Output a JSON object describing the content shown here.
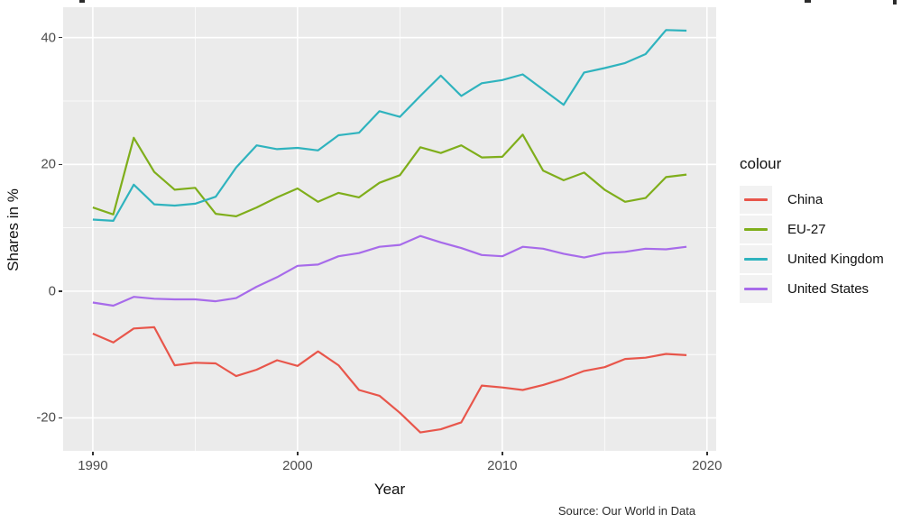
{
  "figure": {
    "source_note": "Source: Our World in Data"
  },
  "colors": {
    "panel_bg": "#EBEBEB",
    "grid": "#FFFFFF",
    "tick_text": "#4D4D4D",
    "axis_title_text": "#111111",
    "legend_key_bg": "#F2F2F2",
    "china": "#E8564B",
    "eu27": "#7FAE1B",
    "united_kingdom": "#2FB3BE",
    "united_states": "#A76BEA"
  },
  "chart_data": {
    "type": "line",
    "xlabel": "Year",
    "ylabel": "Shares in %",
    "legend_title": "colour",
    "legend_position": "right",
    "grid": true,
    "xlim": [
      1988.55,
      2020.45
    ],
    "ylim": [
      -25.2,
      44.8
    ],
    "x_ticks": [
      1990,
      2000,
      2010,
      2020
    ],
    "x_minor_ticks": [
      1995,
      2005,
      2015
    ],
    "y_ticks": [
      40,
      20,
      0,
      -20
    ],
    "y_minor_ticks": [
      30,
      10,
      -10
    ],
    "x": [
      1990,
      1991,
      1992,
      1993,
      1994,
      1995,
      1996,
      1997,
      1998,
      1999,
      2000,
      2001,
      2002,
      2003,
      2004,
      2005,
      2006,
      2007,
      2008,
      2009,
      2010,
      2011,
      2012,
      2013,
      2014,
      2015,
      2016,
      2017,
      2018,
      2019
    ],
    "series": [
      {
        "name": "China",
        "color": "#E8564B",
        "values": [
          -6.7,
          -8.1,
          -5.9,
          -5.7,
          -11.7,
          -11.3,
          -11.4,
          -13.4,
          -12.4,
          -10.9,
          -11.8,
          -9.5,
          -11.7,
          -15.6,
          -16.5,
          -19.2,
          -22.3,
          -21.8,
          -20.7,
          -14.9,
          -15.2,
          -15.6,
          -14.8,
          -13.8,
          -12.6,
          -12.0,
          -10.7,
          -10.5,
          -9.9,
          -10.1
        ]
      },
      {
        "name": "EU-27",
        "color": "#7FAE1B",
        "values": [
          13.2,
          12.1,
          24.2,
          18.8,
          16.0,
          16.3,
          12.2,
          11.8,
          13.2,
          14.8,
          16.2,
          14.1,
          15.5,
          14.8,
          17.1,
          18.3,
          22.7,
          21.8,
          23.0,
          21.1,
          21.2,
          24.7,
          19.0,
          17.5,
          18.7,
          16.0,
          14.1,
          14.7,
          18.0,
          18.4
        ]
      },
      {
        "name": "United Kingdom",
        "color": "#2FB3BE",
        "values": [
          11.3,
          11.1,
          16.8,
          13.7,
          13.5,
          13.8,
          14.9,
          19.5,
          23.0,
          22.4,
          22.6,
          22.2,
          24.6,
          25.0,
          28.4,
          27.5,
          30.8,
          34.0,
          30.8,
          32.8,
          33.3,
          34.2,
          31.8,
          29.4,
          34.5,
          35.2,
          36.0,
          37.4,
          41.2,
          41.1
        ]
      },
      {
        "name": "United States",
        "color": "#A76BEA",
        "values": [
          -1.8,
          -2.3,
          -0.9,
          -1.2,
          -1.3,
          -1.3,
          -1.6,
          -1.1,
          0.7,
          2.2,
          4.0,
          4.2,
          5.5,
          6.0,
          7.0,
          7.3,
          8.7,
          7.7,
          6.8,
          5.7,
          5.5,
          7.0,
          6.7,
          5.9,
          5.3,
          6.0,
          6.2,
          6.7,
          6.6,
          7.0
        ]
      }
    ]
  }
}
